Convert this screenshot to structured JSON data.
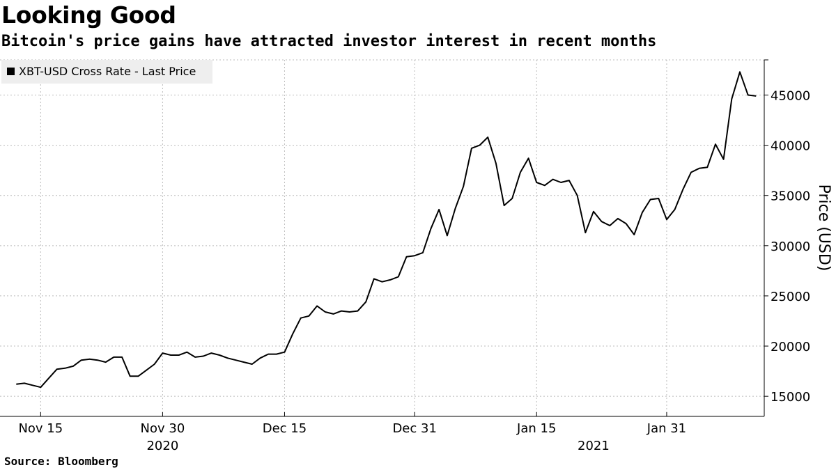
{
  "title": "Looking Good",
  "subtitle": "Bitcoin's price gains have attracted investor interest in recent months",
  "source": "Source:  Bloomberg",
  "colors": {
    "line": "#000000",
    "grid": "#bbbbbb",
    "legend_bg": "#eeeeee"
  },
  "chart_data": {
    "type": "line",
    "title": "Looking Good",
    "subtitle": "Bitcoin's price gains have attracted investor interest in recent months",
    "ylabel": "Price (USD)",
    "xlabel": "",
    "legend": {
      "entries": [
        "XBT-USD Cross Rate - Last Price"
      ],
      "placement": "top-left"
    },
    "y_axis_side": "right",
    "ylim": [
      13000,
      48500
    ],
    "xlim": [
      "2020-11-10",
      "2021-02-12"
    ],
    "yticks": [
      15000,
      20000,
      25000,
      30000,
      35000,
      40000,
      45000
    ],
    "ytick_labels": [
      "15000",
      "20000",
      "25000",
      "30000",
      "35000",
      "40000",
      "45000"
    ],
    "xticks": [
      {
        "date": "2020-11-15",
        "label": "Nov 15"
      },
      {
        "date": "2020-11-30",
        "label": "Nov 30"
      },
      {
        "date": "2020-12-15",
        "label": "Dec 15"
      },
      {
        "date": "2020-12-31",
        "label": "Dec 31"
      },
      {
        "date": "2021-01-15",
        "label": "Jan 15"
      },
      {
        "date": "2021-01-31",
        "label": "Jan 31"
      }
    ],
    "year_labels": [
      {
        "date": "2020-11-30",
        "label": "2020"
      },
      {
        "date": "2021-01-22",
        "label": "2021"
      }
    ],
    "grid": true,
    "series": [
      {
        "name": "XBT-USD Cross Rate - Last Price",
        "x": [
          "2020-11-12",
          "2020-11-13",
          "2020-11-14",
          "2020-11-15",
          "2020-11-16",
          "2020-11-17",
          "2020-11-18",
          "2020-11-19",
          "2020-11-20",
          "2020-11-21",
          "2020-11-22",
          "2020-11-23",
          "2020-11-24",
          "2020-11-25",
          "2020-11-26",
          "2020-11-27",
          "2020-11-28",
          "2020-11-29",
          "2020-11-30",
          "2020-12-01",
          "2020-12-02",
          "2020-12-03",
          "2020-12-04",
          "2020-12-05",
          "2020-12-06",
          "2020-12-07",
          "2020-12-08",
          "2020-12-09",
          "2020-12-10",
          "2020-12-11",
          "2020-12-12",
          "2020-12-13",
          "2020-12-14",
          "2020-12-15",
          "2020-12-16",
          "2020-12-17",
          "2020-12-18",
          "2020-12-19",
          "2020-12-20",
          "2020-12-21",
          "2020-12-22",
          "2020-12-23",
          "2020-12-24",
          "2020-12-25",
          "2020-12-26",
          "2020-12-27",
          "2020-12-28",
          "2020-12-29",
          "2020-12-30",
          "2020-12-31",
          "2021-01-01",
          "2021-01-02",
          "2021-01-03",
          "2021-01-04",
          "2021-01-05",
          "2021-01-06",
          "2021-01-07",
          "2021-01-08",
          "2021-01-09",
          "2021-01-10",
          "2021-01-11",
          "2021-01-12",
          "2021-01-13",
          "2021-01-14",
          "2021-01-15",
          "2021-01-16",
          "2021-01-17",
          "2021-01-18",
          "2021-01-19",
          "2021-01-20",
          "2021-01-21",
          "2021-01-22",
          "2021-01-23",
          "2021-01-24",
          "2021-01-25",
          "2021-01-26",
          "2021-01-27",
          "2021-01-28",
          "2021-01-29",
          "2021-01-30",
          "2021-01-31",
          "2021-02-01",
          "2021-02-02",
          "2021-02-03",
          "2021-02-04",
          "2021-02-05",
          "2021-02-06",
          "2021-02-07",
          "2021-02-08",
          "2021-02-09",
          "2021-02-10",
          "2021-02-11"
        ],
        "values": [
          16200,
          16300,
          16100,
          15900,
          16800,
          17700,
          17800,
          18000,
          18600,
          18700,
          18600,
          18400,
          18900,
          18900,
          17000,
          17000,
          17600,
          18200,
          19300,
          19100,
          19100,
          19400,
          18900,
          19000,
          19300,
          19100,
          18800,
          18600,
          18400,
          18200,
          18800,
          19200,
          19200,
          19400,
          21200,
          22800,
          23000,
          24000,
          23400,
          23200,
          23500,
          23400,
          23500,
          24400,
          26700,
          26400,
          26600,
          26900,
          28900,
          29000,
          29300,
          31700,
          33600,
          31000,
          33700,
          35900,
          39700,
          40000,
          40800,
          38200,
          34000,
          34700,
          37300,
          38700,
          36300,
          36000,
          36600,
          36300,
          36500,
          35000,
          31300,
          33400,
          32400,
          32000,
          32700,
          32200,
          31100,
          33300,
          34600,
          34700,
          32600,
          33600,
          35600,
          37300,
          37700,
          37800,
          40100,
          38600,
          44600,
          47300,
          45000,
          44900
        ]
      }
    ]
  }
}
